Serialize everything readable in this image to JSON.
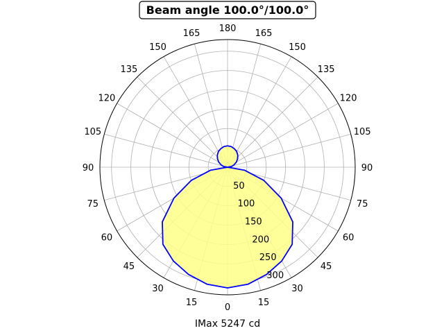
{
  "chart_data": {
    "type": "polar-area",
    "title": "Beam angle 100.0°/100.0°",
    "xlabel": "IMax 5247 cd",
    "angle_tick_labels": [
      "0",
      "15",
      "30",
      "45",
      "60",
      "75",
      "90",
      "105",
      "120",
      "135",
      "150",
      "165",
      "180"
    ],
    "radial_ticks": [
      50,
      100,
      150,
      200,
      250,
      300
    ],
    "rlim": [
      0,
      330
    ],
    "grid": true,
    "colors": {
      "fill": "#ffff88",
      "line": "#0000ff",
      "grid": "#b0b0b0"
    },
    "series": [
      {
        "angles_deg": [
          0,
          10,
          20,
          30,
          40,
          50,
          60,
          70,
          80,
          90
        ],
        "values": [
          312,
          307,
          295,
          280,
          260,
          220,
          160,
          100,
          45,
          0
        ]
      },
      {
        "angles_deg": [
          90,
          100,
          110,
          120,
          130,
          140,
          150,
          160,
          170,
          180
        ],
        "values": [
          0,
          10,
          18,
          26,
          34,
          41,
          47,
          51,
          54,
          55
        ]
      }
    ]
  }
}
